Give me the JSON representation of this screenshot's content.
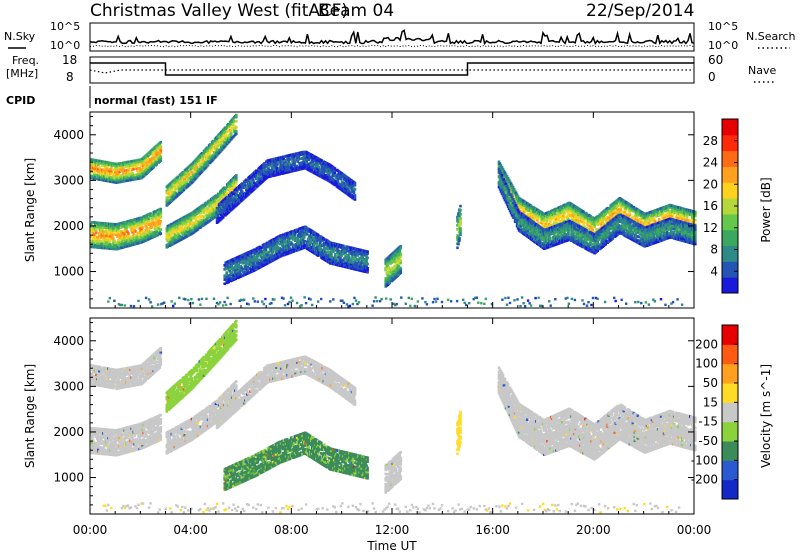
{
  "header": {
    "station": "Christmas Valley West (fitACF)",
    "beam": "Beam 04",
    "date": "22/Sep/2014"
  },
  "panels": {
    "nsky_label": "N.Sky",
    "nsearch_label": "N.Search",
    "freq_label_1": "Freq.",
    "freq_label_2": "[MHz]",
    "nave_label": "Nave",
    "cpid_label": "CPID",
    "cpid_text": "normal (fast) 151 IF",
    "noise_left_ticks": [
      "10^5",
      "10^0"
    ],
    "noise_right_ticks": [
      "10^5",
      "10^0"
    ],
    "freq_left_ticks": [
      "18",
      "8"
    ],
    "nave_right_ticks": [
      "60",
      "0"
    ]
  },
  "chart_data": [
    {
      "type": "heatmap",
      "name": "power",
      "xlabel": "",
      "ylabel": "Slant Range [km]",
      "x_ticks": [
        "00:00",
        "04:00",
        "08:00",
        "12:00",
        "16:00",
        "20:00",
        "00:00"
      ],
      "xlim_hours": [
        0,
        24
      ],
      "ylim": [
        200,
        4500
      ],
      "y_ticks": [
        1000,
        2000,
        3000,
        4000
      ],
      "colorbar": {
        "label": "Power [dB]",
        "range": [
          0,
          32
        ],
        "ticks": [
          4,
          8,
          12,
          16,
          20,
          24,
          28
        ],
        "colors": [
          "#1a1adc",
          "#2454b4",
          "#2e8a86",
          "#3aa860",
          "#66c84a",
          "#b4d83a",
          "#ffd21e",
          "#ffa01e",
          "#ff6a14",
          "#ff2a0a",
          "#e60000"
        ]
      },
      "echo_bands": [
        {
          "x": [
            0.0,
            1.0,
            2.0,
            2.8
          ],
          "y": [
            1850,
            1800,
            1950,
            2150
          ],
          "w": 280,
          "level": 24
        },
        {
          "x": [
            0.0,
            1.0,
            2.0,
            2.8
          ],
          "y": [
            3300,
            3200,
            3300,
            3700
          ],
          "w": 220,
          "level": 24
        },
        {
          "x": [
            3.0,
            4.0,
            5.0,
            5.8
          ],
          "y": [
            1800,
            2100,
            2500,
            2950
          ],
          "w": 240,
          "level": 20
        },
        {
          "x": [
            3.0,
            4.0,
            5.0,
            5.8
          ],
          "y": [
            2700,
            3200,
            3800,
            4300
          ],
          "w": 220,
          "level": 20
        },
        {
          "x": [
            5.0,
            6.0,
            7.0,
            8.5,
            9.5,
            10.5
          ],
          "y": [
            2300,
            2800,
            3300,
            3500,
            3200,
            2800
          ],
          "w": 200,
          "level": 6
        },
        {
          "x": [
            5.3,
            6.5,
            7.5,
            8.5,
            9.5,
            11.0
          ],
          "y": [
            1000,
            1300,
            1600,
            1800,
            1450,
            1250
          ],
          "w": 240,
          "level": 8
        },
        {
          "x": [
            11.7,
            12.0,
            12.3
          ],
          "y": [
            1000,
            1150,
            1300
          ],
          "w": 300,
          "level": 18
        },
        {
          "x": [
            14.55,
            14.7
          ],
          "y": [
            1900,
            2200
          ],
          "w": 350,
          "level": 16
        },
        {
          "x": [
            16.2,
            17.0,
            18.0,
            19.0,
            20.0,
            21.0,
            22.0,
            23.0,
            24.0
          ],
          "y": [
            3200,
            2400,
            2050,
            2300,
            1950,
            2400,
            2050,
            2250,
            2100
          ],
          "w": 260,
          "level": 22
        },
        {
          "x": [
            16.2,
            17.0,
            18.0,
            19.0,
            20.0,
            21.0,
            22.0,
            23.0,
            24.0
          ],
          "y": [
            3100,
            2150,
            1750,
            1950,
            1650,
            2100,
            1800,
            2000,
            1850
          ],
          "w": 220,
          "level": 10
        }
      ]
    },
    {
      "type": "heatmap",
      "name": "velocity",
      "xlabel": "Time UT",
      "ylabel": "Slant Range [km]",
      "x_ticks": [
        "00:00",
        "04:00",
        "08:00",
        "12:00",
        "16:00",
        "20:00",
        "00:00"
      ],
      "xlim_hours": [
        0,
        24
      ],
      "ylim": [
        200,
        4500
      ],
      "y_ticks": [
        1000,
        2000,
        3000,
        4000
      ],
      "colorbar": {
        "label": "Velocity [m s^-1]",
        "range": [
          -250,
          250
        ],
        "ticks": [
          200,
          100,
          50,
          15,
          -15,
          -50,
          -100,
          -200
        ],
        "colors": [
          "#1428c8",
          "#2a5ad2",
          "#3c8c5a",
          "#8cd23c",
          "#c8c8c8",
          "#ffdc28",
          "#ffa01e",
          "#ff5a14",
          "#e60000"
        ]
      },
      "echo_bands": [
        {
          "x": [
            0.0,
            1.0,
            2.0,
            2.8
          ],
          "y": [
            1850,
            1800,
            1950,
            2150
          ],
          "w": 280,
          "level": 0
        },
        {
          "x": [
            0.0,
            1.0,
            2.0,
            2.8
          ],
          "y": [
            3300,
            3200,
            3300,
            3700
          ],
          "w": 220,
          "level": 0
        },
        {
          "x": [
            3.0,
            4.0,
            5.0,
            5.8
          ],
          "y": [
            1800,
            2100,
            2500,
            2950
          ],
          "w": 240,
          "level": 0
        },
        {
          "x": [
            3.0,
            4.0,
            5.0,
            5.8
          ],
          "y": [
            2700,
            3200,
            3800,
            4300
          ],
          "w": 220,
          "level": -40
        },
        {
          "x": [
            5.0,
            6.0,
            7.0,
            8.5,
            9.5,
            10.5
          ],
          "y": [
            2300,
            2800,
            3300,
            3500,
            3200,
            2800
          ],
          "w": 180,
          "level": 0
        },
        {
          "x": [
            5.3,
            6.5,
            7.5,
            8.5,
            9.5,
            11.0
          ],
          "y": [
            1000,
            1300,
            1600,
            1800,
            1450,
            1250
          ],
          "w": 240,
          "level": -90
        },
        {
          "x": [
            11.7,
            12.0,
            12.3
          ],
          "y": [
            1000,
            1150,
            1300
          ],
          "w": 300,
          "level": 0
        },
        {
          "x": [
            14.55,
            14.7
          ],
          "y": [
            1900,
            2200
          ],
          "w": 350,
          "level": 40
        },
        {
          "x": [
            16.2,
            17.0,
            18.0,
            19.0,
            20.0,
            21.0,
            22.0,
            23.0,
            24.0
          ],
          "y": [
            3200,
            2400,
            2050,
            2300,
            1950,
            2400,
            2050,
            2250,
            2100
          ],
          "w": 260,
          "level": 0
        },
        {
          "x": [
            16.2,
            17.0,
            18.0,
            19.0,
            20.0,
            21.0,
            22.0,
            23.0,
            24.0
          ],
          "y": [
            3100,
            2150,
            1750,
            1950,
            1650,
            2100,
            1800,
            2000,
            1850
          ],
          "w": 220,
          "level": 0
        }
      ]
    }
  ]
}
